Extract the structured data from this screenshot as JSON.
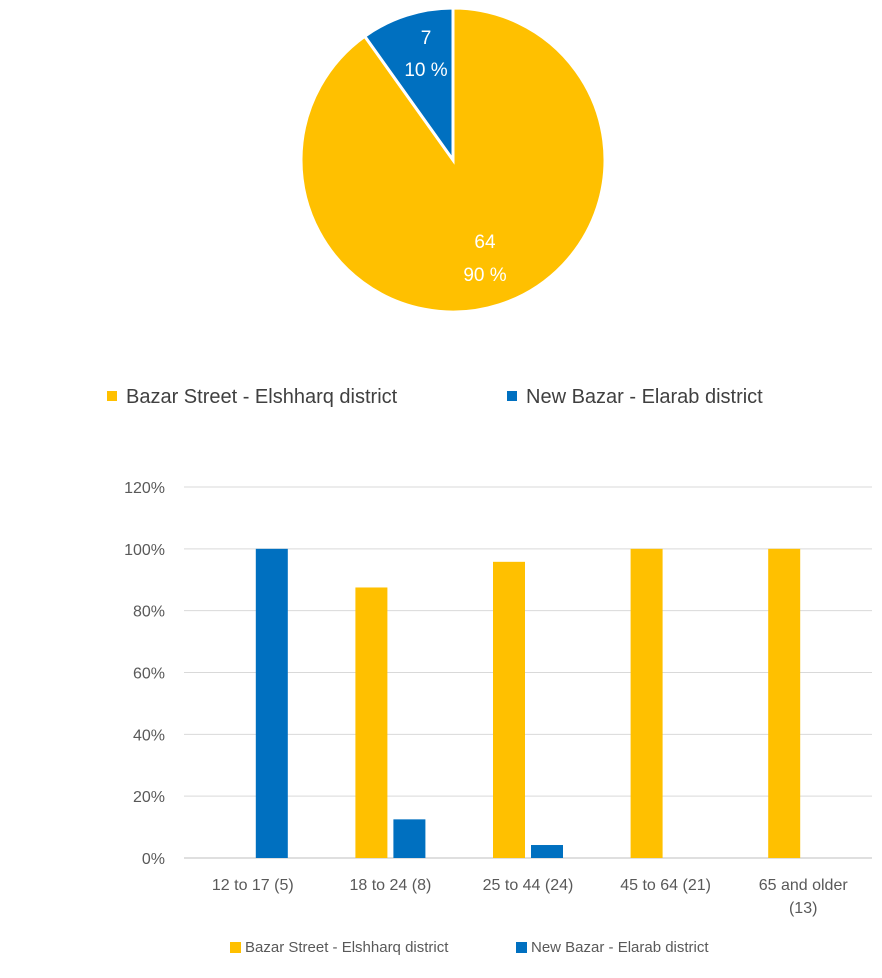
{
  "chart_data": [
    {
      "type": "pie",
      "series": [
        {
          "name": "Bazar Street - Elshharq district",
          "count_label": "64",
          "pct_label": "90 %",
          "value": 64,
          "color": "#FFC000"
        },
        {
          "name": "New Bazar - Elarab district",
          "count_label": "7",
          "pct_label": "10 %",
          "value": 7,
          "color": "#0070C0"
        }
      ],
      "legend_position": "bottom"
    },
    {
      "type": "bar",
      "categories": [
        "12 to 17 (5)",
        "18 to 24 (8)",
        "25 to 44 (24)",
        "45 to 64 (21)",
        "65 and older (13)"
      ],
      "series": [
        {
          "name": "Bazar Street - Elshharq district",
          "values": [
            0,
            87.5,
            95.8,
            100,
            100
          ],
          "color": "#FFC000"
        },
        {
          "name": "New Bazar - Elarab district",
          "values": [
            100,
            12.5,
            4.2,
            0,
            0
          ],
          "color": "#0070C0"
        }
      ],
      "yticks": [
        "0%",
        "20%",
        "40%",
        "60%",
        "80%",
        "100%",
        "120%"
      ],
      "ylim": [
        0,
        120
      ],
      "grid": true,
      "legend_position": "bottom"
    }
  ]
}
